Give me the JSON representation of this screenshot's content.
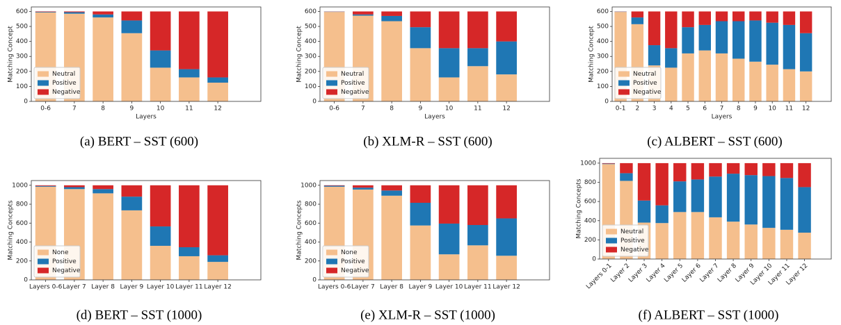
{
  "chart_data": [
    {
      "type": "bar",
      "stacked": true,
      "title": "(a) BERT – SST (600)",
      "xlabel": "Layers",
      "ylabel": "Matching Concept",
      "categories": [
        "0-6",
        "7",
        "8",
        "9",
        "10",
        "11",
        "12"
      ],
      "series": [
        {
          "name": "Neutral",
          "color": "#f5bf8d",
          "values": [
            593,
            585,
            560,
            455,
            225,
            160,
            125
          ]
        },
        {
          "name": "Positive",
          "color": "#1f77b4",
          "values": [
            4,
            10,
            20,
            85,
            115,
            55,
            35
          ]
        },
        {
          "name": "Negative",
          "color": "#d62728",
          "values": [
            3,
            5,
            20,
            60,
            260,
            385,
            440
          ]
        }
      ],
      "ylim": [
        0,
        630
      ],
      "yticks": [
        0,
        100,
        200,
        300,
        400,
        500,
        600
      ],
      "legend": "lower left"
    },
    {
      "type": "bar",
      "stacked": true,
      "title": "(b) XLM-R – SST (600)",
      "xlabel": "Layers",
      "ylabel": "Matching Concept",
      "categories": [
        "0-6",
        "7",
        "8",
        "9",
        "10",
        "11",
        "12"
      ],
      "series": [
        {
          "name": "Neutral",
          "color": "#f5bf8d",
          "values": [
            597,
            572,
            535,
            355,
            160,
            235,
            180
          ]
        },
        {
          "name": "Positive",
          "color": "#1f77b4",
          "values": [
            2,
            8,
            35,
            140,
            195,
            120,
            220
          ]
        },
        {
          "name": "Negative",
          "color": "#d62728",
          "values": [
            1,
            20,
            30,
            105,
            245,
            245,
            200
          ]
        }
      ],
      "ylim": [
        0,
        630
      ],
      "yticks": [
        0,
        100,
        200,
        300,
        400,
        500,
        600
      ],
      "legend": "lower left"
    },
    {
      "type": "bar",
      "stacked": true,
      "title": "(c) ALBERT – SST (600)",
      "xlabel": "Layers",
      "ylabel": "Matching Concept",
      "categories": [
        "0-1",
        "2",
        "3",
        "4",
        "5",
        "6",
        "7",
        "8",
        "9",
        "10",
        "11",
        "12"
      ],
      "series": [
        {
          "name": "Neutral",
          "color": "#f5bf8d",
          "values": [
            597,
            515,
            240,
            225,
            320,
            340,
            320,
            285,
            265,
            245,
            215,
            200
          ]
        },
        {
          "name": "Positive",
          "color": "#1f77b4",
          "values": [
            2,
            45,
            135,
            130,
            175,
            170,
            215,
            250,
            275,
            280,
            295,
            255
          ]
        },
        {
          "name": "Negative",
          "color": "#d62728",
          "values": [
            1,
            40,
            225,
            245,
            105,
            90,
            65,
            65,
            60,
            75,
            90,
            145
          ]
        }
      ],
      "ylim": [
        0,
        630
      ],
      "yticks": [
        0,
        100,
        200,
        300,
        400,
        500,
        600
      ],
      "legend": "lower left"
    },
    {
      "type": "bar",
      "stacked": true,
      "title": "(d) BERT – SST (1000)",
      "ylabel": "Matching Concepts",
      "categories": [
        "Layers 0-6",
        "Layer 7",
        "Layer 8",
        "Layer 9",
        "Layer 10",
        "Layer 11",
        "Layer 12"
      ],
      "series": [
        {
          "name": "None",
          "color": "#f5bf8d",
          "values": [
            985,
            960,
            915,
            735,
            360,
            250,
            190
          ]
        },
        {
          "name": "Positive",
          "color": "#1f77b4",
          "values": [
            8,
            20,
            45,
            145,
            205,
            95,
            70
          ]
        },
        {
          "name": "Negative",
          "color": "#d62728",
          "values": [
            7,
            20,
            40,
            120,
            435,
            655,
            740
          ]
        }
      ],
      "ylim": [
        0,
        1050
      ],
      "yticks": [
        0,
        200,
        400,
        600,
        800,
        1000
      ],
      "legend": "lower left"
    },
    {
      "type": "bar",
      "stacked": true,
      "title": "(e) XLM-R – SST (1000)",
      "ylabel": "Matching Concepts",
      "categories": [
        "Layers 0-6",
        "Layer 7",
        "Layer 8",
        "Layer 9",
        "Layer 10",
        "Layer 11",
        "Layer 12"
      ],
      "series": [
        {
          "name": "None",
          "color": "#f5bf8d",
          "values": [
            985,
            955,
            890,
            575,
            270,
            365,
            255
          ]
        },
        {
          "name": "Positive",
          "color": "#1f77b4",
          "values": [
            10,
            20,
            55,
            240,
            325,
            215,
            395
          ]
        },
        {
          "name": "Negative",
          "color": "#d62728",
          "values": [
            5,
            25,
            55,
            185,
            405,
            420,
            350
          ]
        }
      ],
      "ylim": [
        0,
        1050
      ],
      "yticks": [
        0,
        200,
        400,
        600,
        800,
        1000
      ],
      "legend": "lower left"
    },
    {
      "type": "bar",
      "stacked": true,
      "title": "(f) ALBERT – SST (1000)",
      "ylabel": "Matching Concepts",
      "categories": [
        "Layers 0-1",
        "Layer 2",
        "Layer 3",
        "Layer 4",
        "Layer 5",
        "Layer 6",
        "Layer 7",
        "Layer 8",
        "Layer 9",
        "Layer 10",
        "Layer 11",
        "Layer 12"
      ],
      "series": [
        {
          "name": "Neutral",
          "color": "#f5bf8d",
          "values": [
            990,
            815,
            380,
            375,
            490,
            490,
            435,
            390,
            360,
            325,
            305,
            275
          ]
        },
        {
          "name": "Positive",
          "color": "#1f77b4",
          "values": [
            5,
            80,
            230,
            185,
            320,
            340,
            425,
            500,
            515,
            540,
            540,
            475
          ]
        },
        {
          "name": "Negative",
          "color": "#d62728",
          "values": [
            5,
            105,
            390,
            440,
            190,
            170,
            140,
            110,
            125,
            135,
            155,
            250
          ]
        }
      ],
      "ylim": [
        0,
        1050
      ],
      "yticks": [
        0,
        200,
        400,
        600,
        800,
        1000
      ],
      "legend": "lower left"
    }
  ]
}
